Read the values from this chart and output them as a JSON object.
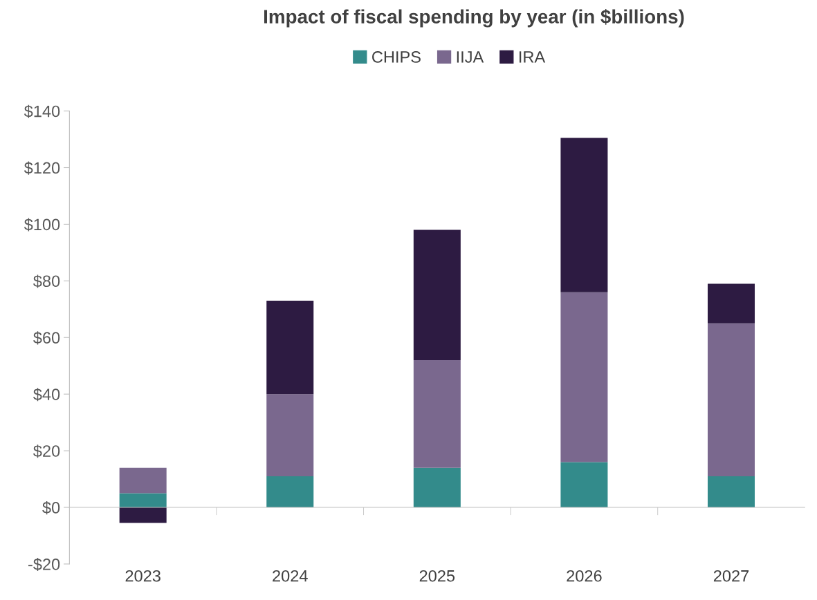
{
  "chart_data": {
    "type": "bar",
    "title": "Impact of fiscal spending by year (in $billions)",
    "categories": [
      "2023",
      "2024",
      "2025",
      "2026",
      "2027"
    ],
    "stacked": true,
    "series": [
      {
        "name": "CHIPS",
        "color": "#338b8b",
        "values": [
          5,
          11,
          14,
          16,
          11
        ]
      },
      {
        "name": "IIJA",
        "color": "#7a688e",
        "values": [
          9,
          29,
          38,
          60,
          54
        ]
      },
      {
        "name": "IRA",
        "color": "#2d1b42",
        "values": [
          -5.5,
          33,
          46,
          54.5,
          14
        ]
      }
    ],
    "ylim": [
      -20,
      140
    ],
    "yticks": [
      {
        "value": -20,
        "label": "-$20"
      },
      {
        "value": 0,
        "label": "$0"
      },
      {
        "value": 20,
        "label": "$20"
      },
      {
        "value": 40,
        "label": "$40"
      },
      {
        "value": 60,
        "label": "$60"
      },
      {
        "value": 80,
        "label": "$80"
      },
      {
        "value": 100,
        "label": "$100"
      },
      {
        "value": 120,
        "label": "$120"
      },
      {
        "value": 140,
        "label": "$140"
      }
    ],
    "legend": "top"
  }
}
